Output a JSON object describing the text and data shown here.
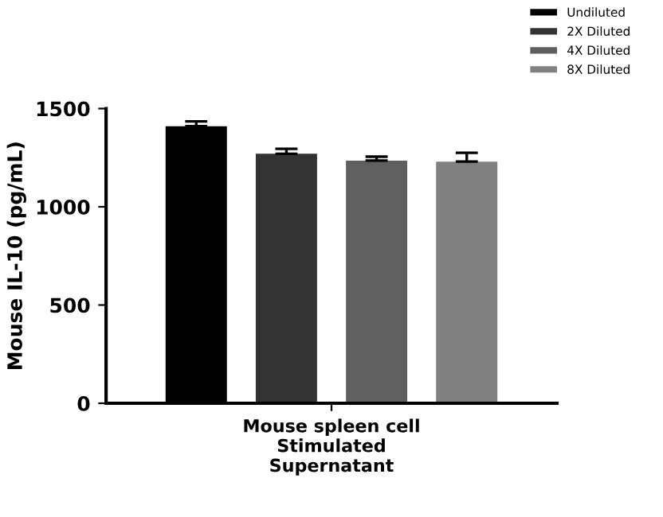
{
  "chart_data": {
    "type": "bar",
    "ylabel": "Mouse IL-10 (pg/mL)",
    "categories": [
      "Mouse spleen cell\nStimulated\nSupernatant"
    ],
    "series": [
      {
        "name": "Undiluted",
        "color": "#000000",
        "values": [
          1410
        ],
        "errors": [
          25
        ]
      },
      {
        "name": "2X Diluted",
        "color": "#333333",
        "values": [
          1270
        ],
        "errors": [
          25
        ]
      },
      {
        "name": "4X Diluted",
        "color": "#5f5f5f",
        "values": [
          1235
        ],
        "errors": [
          20
        ]
      },
      {
        "name": "8X Diluted",
        "color": "#808080",
        "values": [
          1230
        ],
        "errors": [
          45
        ]
      }
    ],
    "ylim": [
      0,
      1500
    ],
    "yticks": [
      0,
      500,
      1000,
      1500
    ],
    "grid": false,
    "legend": "top right"
  }
}
